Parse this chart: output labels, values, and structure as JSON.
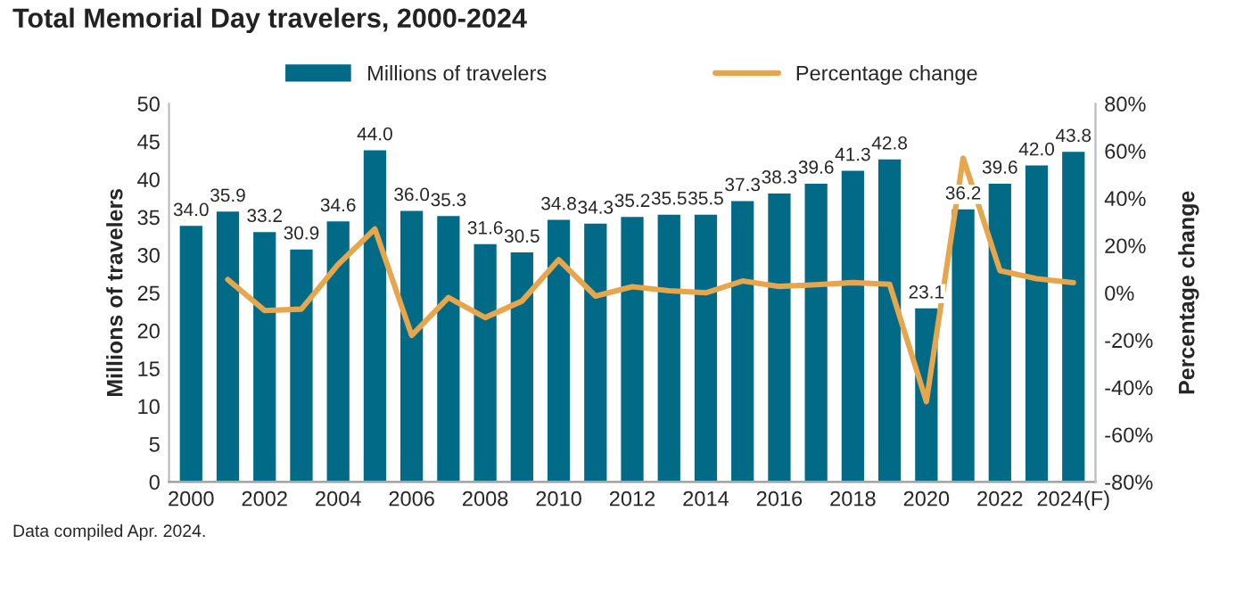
{
  "chart_data": {
    "type": "bar",
    "title": "Total Memorial Day travelers, 2000-2024",
    "categories": [
      "2000",
      null,
      "2002",
      null,
      "2004",
      null,
      "2006",
      null,
      "2008",
      null,
      "2010",
      null,
      "2012",
      null,
      "2014",
      null,
      "2016",
      null,
      "2018",
      null,
      "2020",
      null,
      "2022",
      null,
      "2024(F)"
    ],
    "series": [
      {
        "name": "Millions of travelers",
        "color": "#006a87",
        "values": [
          34.0,
          35.9,
          33.2,
          30.9,
          34.6,
          44.0,
          36.0,
          35.3,
          31.6,
          30.5,
          34.8,
          34.3,
          35.2,
          35.5,
          35.5,
          37.3,
          38.3,
          39.6,
          41.3,
          42.8,
          23.1,
          36.2,
          39.6,
          42.0,
          43.8
        ],
        "value_labels": [
          "34.0",
          "35.9",
          "33.2",
          "30.9",
          "34.6",
          "44.0",
          "36.0",
          "35.3",
          "31.6",
          "30.5",
          "34.8",
          "34.3",
          "35.2",
          "35.5",
          "35.5",
          "37.3",
          "38.3",
          "39.6",
          "41.3",
          "42.8",
          "23.1",
          "36.2",
          "39.6",
          "42.0",
          "43.8"
        ]
      },
      {
        "name": "Percentage change",
        "type": "line",
        "axis": "y2",
        "color": "#e8a64c",
        "values": [
          null,
          5.6,
          -7.5,
          -6.9,
          12,
          27,
          -18,
          -2,
          -10.5,
          -3.5,
          14,
          -1.4,
          2.6,
          0.9,
          0,
          5,
          2.7,
          3.4,
          4.3,
          3.6,
          -46,
          57,
          9.4,
          6,
          4.3
        ]
      }
    ],
    "ylabel": "Millions of travelers",
    "y2label": "Percentage change",
    "ylim": [
      0,
      50
    ],
    "yticks": [
      0,
      5,
      10,
      15,
      20,
      25,
      30,
      35,
      40,
      45,
      50
    ],
    "y2lim": [
      -80,
      80
    ],
    "y2ticks": [
      {
        "value": -80,
        "label": "-80%"
      },
      {
        "value": -60,
        "label": "-60%"
      },
      {
        "value": -40,
        "label": "-40%"
      },
      {
        "value": -20,
        "label": "-20%"
      },
      {
        "value": 0,
        "label": "0%"
      },
      {
        "value": 20,
        "label": "20%"
      },
      {
        "value": 40,
        "label": "40%"
      },
      {
        "value": 60,
        "label": "60%"
      },
      {
        "value": 80,
        "label": "80%"
      }
    ],
    "grid": false,
    "legend": "top",
    "marker": "none",
    "line_style": "solid",
    "annotations": [
      "Data compiled Apr. 2024."
    ]
  }
}
